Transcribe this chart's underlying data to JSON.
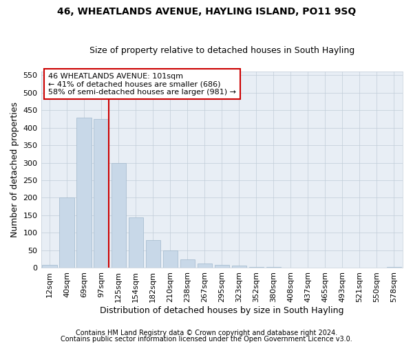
{
  "title": "46, WHEATLANDS AVENUE, HAYLING ISLAND, PO11 9SQ",
  "subtitle": "Size of property relative to detached houses in South Hayling",
  "xlabel": "Distribution of detached houses by size in South Hayling",
  "ylabel": "Number of detached properties",
  "categories": [
    "12sqm",
    "40sqm",
    "69sqm",
    "97sqm",
    "125sqm",
    "154sqm",
    "182sqm",
    "210sqm",
    "238sqm",
    "267sqm",
    "295sqm",
    "323sqm",
    "352sqm",
    "380sqm",
    "408sqm",
    "437sqm",
    "465sqm",
    "493sqm",
    "521sqm",
    "550sqm",
    "578sqm"
  ],
  "values": [
    8,
    200,
    428,
    425,
    300,
    143,
    78,
    50,
    24,
    12,
    8,
    6,
    2,
    2,
    1,
    0,
    0,
    0,
    0,
    0,
    3
  ],
  "bar_color": "#c8d8e8",
  "bar_edge_color": "#a0b8cc",
  "vline_color": "#cc0000",
  "vline_x_idx": 3,
  "annotation_text": "46 WHEATLANDS AVENUE: 101sqm\n← 41% of detached houses are smaller (686)\n58% of semi-detached houses are larger (981) →",
  "annotation_box_facecolor": "#ffffff",
  "annotation_box_edgecolor": "#cc0000",
  "ylim": [
    0,
    560
  ],
  "yticks": [
    0,
    50,
    100,
    150,
    200,
    250,
    300,
    350,
    400,
    450,
    500,
    550
  ],
  "footnote1": "Contains HM Land Registry data © Crown copyright and database right 2024.",
  "footnote2": "Contains public sector information licensed under the Open Government Licence v3.0.",
  "title_fontsize": 10,
  "subtitle_fontsize": 9,
  "xlabel_fontsize": 9,
  "ylabel_fontsize": 9,
  "tick_fontsize": 8,
  "annotation_fontsize": 8,
  "footnote_fontsize": 7,
  "bg_color": "#ffffff",
  "plot_bg_color": "#e8eef5",
  "grid_color": "#c0ccd8"
}
